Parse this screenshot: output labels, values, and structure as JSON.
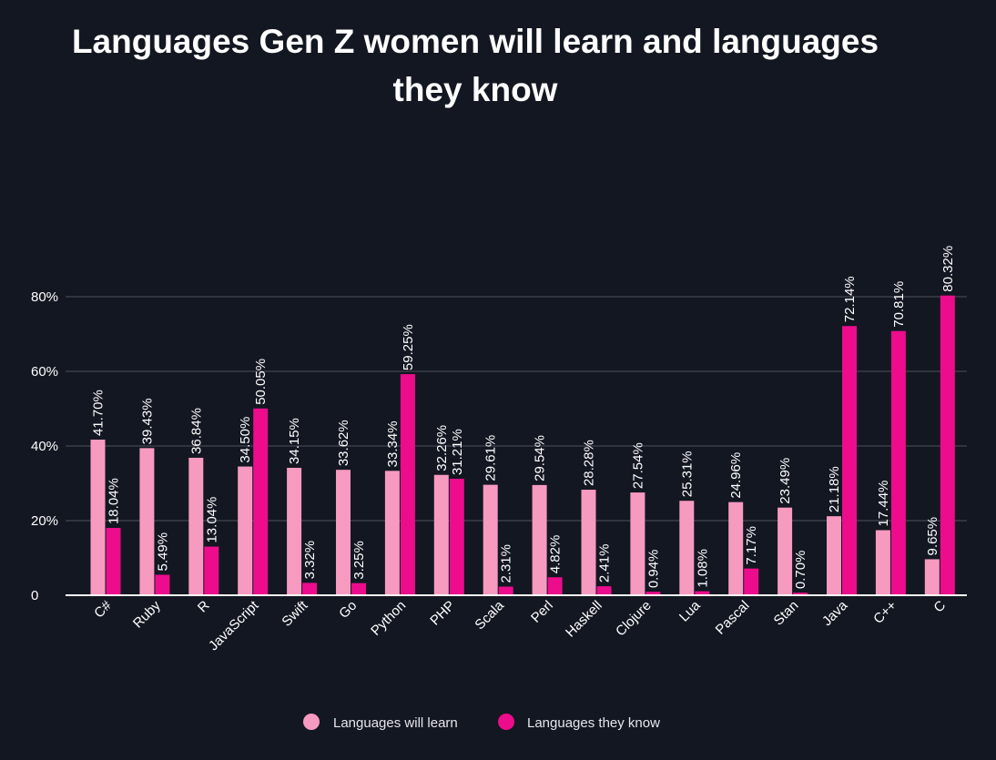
{
  "chart_data": {
    "type": "bar",
    "title_lines": [
      "Languages Gen Z women will learn and languages",
      "they know"
    ],
    "xlabel": "",
    "ylabel": "",
    "ylim": [
      0,
      80
    ],
    "yticks": [
      0,
      20,
      40,
      60,
      80
    ],
    "ytick_labels": [
      "0",
      "20%",
      "40%",
      "60%",
      "80%"
    ],
    "grid": true,
    "legend_position": "bottom",
    "categories": [
      "C#",
      "Ruby",
      "R",
      "JavaScript",
      "Swift",
      "Go",
      "Python",
      "PHP",
      "Scala",
      "Perl",
      "Haskell",
      "Clojure",
      "Lua",
      "Pascal",
      "Stan",
      "Java",
      "C++",
      "C"
    ],
    "series": [
      {
        "name": "Languages will learn",
        "color": "#f79ac0",
        "values": [
          41.7,
          39.43,
          36.84,
          34.5,
          34.15,
          33.62,
          33.34,
          32.26,
          29.61,
          29.54,
          28.28,
          27.54,
          25.31,
          24.96,
          23.49,
          21.18,
          17.44,
          9.65
        ],
        "labels": [
          "41.70%",
          "39.43%",
          "36.84%",
          "34.50%",
          "34.15%",
          "33.62%",
          "33.34%",
          "32.26%",
          "29.61%",
          "29.54%",
          "28.28%",
          "27.54%",
          "25.31%",
          "24.96%",
          "23.49%",
          "21.18%",
          "17.44%",
          "9.65%"
        ]
      },
      {
        "name": "Languages they know",
        "color": "#ec0c8c",
        "values": [
          18.04,
          5.49,
          13.04,
          50.05,
          3.32,
          3.25,
          59.25,
          31.21,
          2.31,
          4.82,
          2.41,
          0.94,
          1.08,
          7.17,
          0.7,
          72.14,
          70.81,
          80.32
        ],
        "labels": [
          "18.04%",
          "5.49%",
          "13.04%",
          "50.05%",
          "3.32%",
          "3.25%",
          "59.25%",
          "31.21%",
          "2.31%",
          "4.82%",
          "2.41%",
          "0.94%",
          "1.08%",
          "7.17%",
          "0.70%",
          "72.14%",
          "70.81%",
          "80.32%"
        ]
      }
    ]
  }
}
